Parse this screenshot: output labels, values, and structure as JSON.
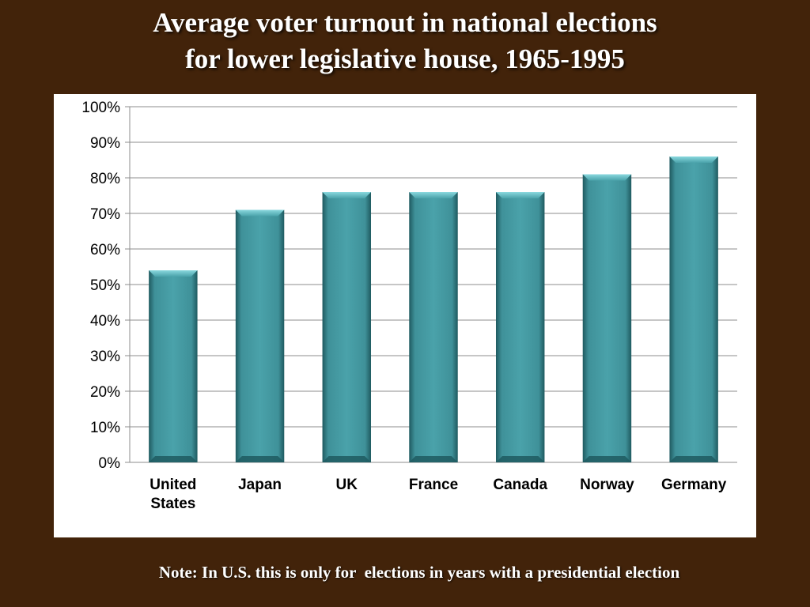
{
  "slide": {
    "title_line1": "Average voter turnout in national elections",
    "title_line2": "for lower legislative house, 1965-1995",
    "note": "Note: In U.S. this is only for  elections in years with a presidential election"
  },
  "colors": {
    "background": "#42230a",
    "bar": "#3f9199",
    "bar_dark": "#1f5a60",
    "bar_light": "#7fd0d6",
    "grid": "#8c8c8c"
  },
  "chart_data": {
    "type": "bar",
    "title": "Average voter turnout in national elections for lower legislative house, 1965-1995",
    "categories": [
      "United States",
      "Japan",
      "UK",
      "France",
      "Canada",
      "Norway",
      "Germany"
    ],
    "category_labels": [
      [
        "United",
        "States"
      ],
      [
        "Japan"
      ],
      [
        "UK"
      ],
      [
        "France"
      ],
      [
        "Canada"
      ],
      [
        "Norway"
      ],
      [
        "Germany"
      ]
    ],
    "values": [
      54,
      71,
      76,
      76,
      76,
      81,
      86
    ],
    "ylim": [
      0,
      100
    ],
    "yticks": [
      0,
      10,
      20,
      30,
      40,
      50,
      60,
      70,
      80,
      90,
      100
    ],
    "ytick_labels": [
      "0%",
      "10%",
      "20%",
      "30%",
      "40%",
      "50%",
      "60%",
      "70%",
      "80%",
      "90%",
      "100%"
    ],
    "grid": true,
    "legend": "none",
    "xlabel": "",
    "ylabel": ""
  }
}
